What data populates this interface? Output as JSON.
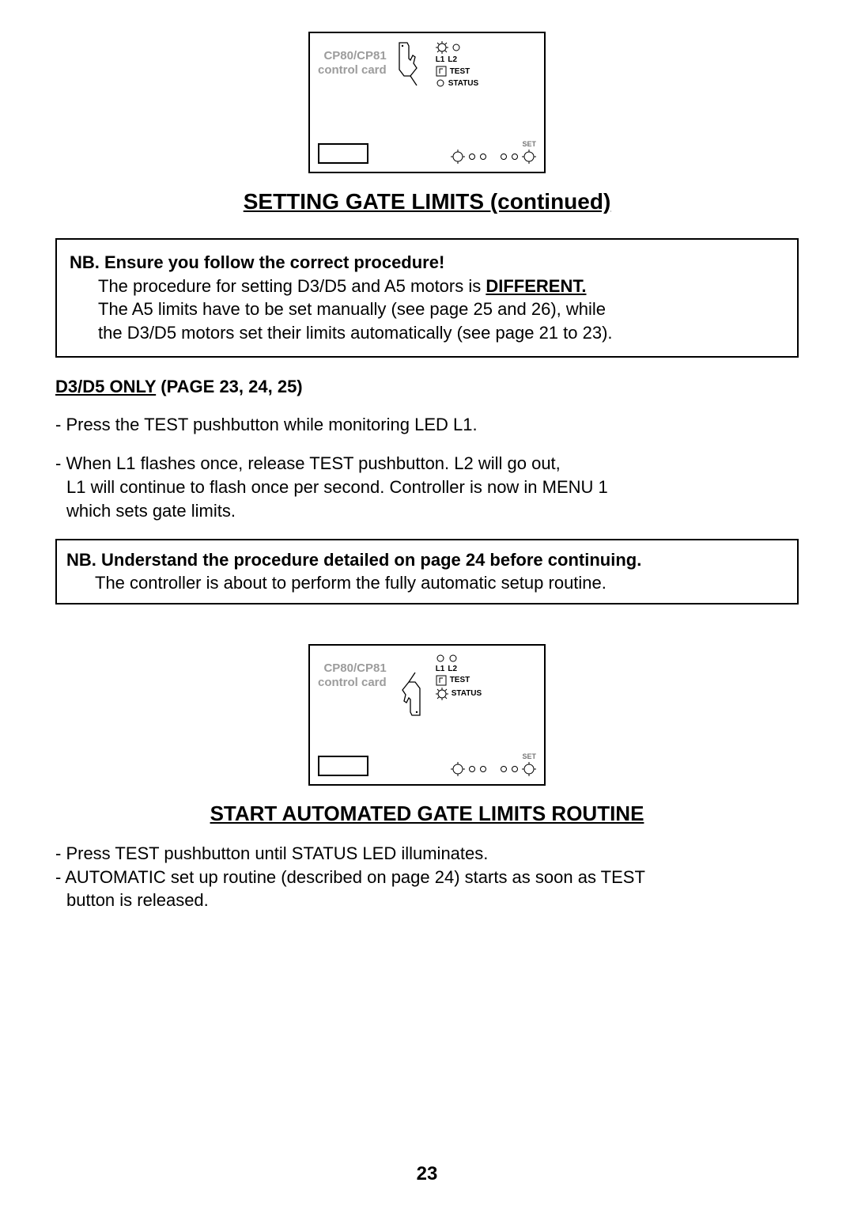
{
  "diagram_card_label": "CP80/CP81\ncontrol card",
  "diagram_labels": {
    "l1": "L1",
    "l2": "L2",
    "test": "TEST",
    "status": "STATUS",
    "set": "SET"
  },
  "heading1": "SETTING GATE LIMITS (continued)",
  "nb1": {
    "title": "NB. Ensure you follow the correct procedure!",
    "line1_pre": "The procedure for setting D3/D5 and A5 motors is ",
    "line1_bold": "DIFFERENT.",
    "line2": "The A5 limits have to be set manually (see page 25 and 26), while",
    "line3": "the D3/D5 motors set their limits automatically (see page 21 to 23)."
  },
  "subhead": {
    "u": "D3/D5 ONLY",
    "rest": " (PAGE 23, 24, 25)"
  },
  "body": {
    "p1": "- Press the TEST pushbutton while monitoring LED L1.",
    "p2a": "- When L1 flashes once, release TEST pushbutton. L2 will go out,",
    "p2b": "L1 will continue to flash once per second. Controller is now in MENU 1",
    "p2c": "which sets gate limits."
  },
  "nb2": {
    "title": "NB. Understand the procedure detailed on page 24 before continuing.",
    "line1": "The controller is about to perform the fully automatic setup routine."
  },
  "heading2": "START AUTOMATED GATE LIMITS ROUTINE",
  "body2": {
    "p1": "- Press TEST pushbutton until STATUS LED illuminates.",
    "p2a": "- AUTOMATIC set up routine (described on page 24) starts as soon as TEST",
    "p2b": "button is released."
  },
  "page_number": "23",
  "colors": {
    "text": "#000000",
    "grey": "#9c9c9c",
    "border": "#000000",
    "bg": "#ffffff"
  }
}
